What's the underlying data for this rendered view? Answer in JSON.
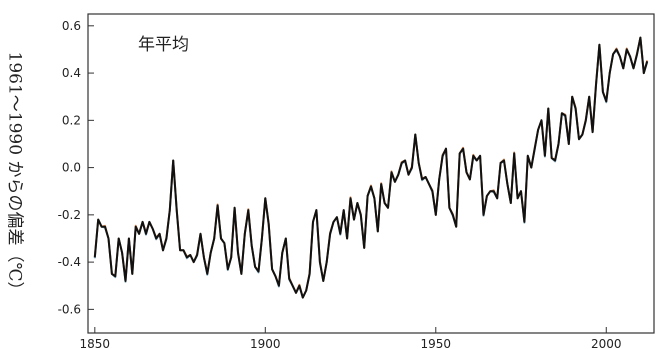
{
  "chart_data": {
    "type": "line",
    "title": "年平均",
    "xlabel": "",
    "ylabel": "1961～1990 からの偏差（℃）",
    "xlim": [
      1848,
      2014
    ],
    "ylim": [
      -0.7,
      0.65
    ],
    "x_ticks": [
      1850,
      1900,
      1950,
      2000
    ],
    "y_ticks": [
      0.6,
      0.4,
      0.2,
      0.0,
      -0.2,
      -0.4,
      -0.6
    ],
    "y_tick_labels": [
      "0.6",
      "0.4",
      "0.2",
      "0.0",
      "-0.2",
      "-0.4",
      "-0.6"
    ],
    "grid": false,
    "colors": [
      "#111111",
      "#d2895a",
      "#8db3c7"
    ],
    "series": [
      {
        "x": [
          1850,
          1851,
          1852,
          1853,
          1854,
          1855,
          1856,
          1857,
          1858,
          1859,
          1860,
          1861,
          1862,
          1863,
          1864,
          1865,
          1866,
          1867,
          1868,
          1869,
          1870,
          1871,
          1872,
          1873,
          1874,
          1875,
          1876,
          1877,
          1878,
          1879,
          1880,
          1881,
          1882,
          1883,
          1884,
          1885,
          1886,
          1887,
          1888,
          1889,
          1890,
          1891,
          1892,
          1893,
          1894,
          1895,
          1896,
          1897,
          1898,
          1899,
          1900,
          1901,
          1902,
          1903,
          1904,
          1905,
          1906,
          1907,
          1908,
          1909,
          1910,
          1911,
          1912,
          1913,
          1914,
          1915,
          1916,
          1917,
          1918,
          1919,
          1920,
          1921,
          1922,
          1923,
          1924,
          1925,
          1926,
          1927,
          1928,
          1929,
          1930,
          1931,
          1932,
          1933,
          1934,
          1935,
          1936,
          1937,
          1938,
          1939,
          1940,
          1941,
          1942,
          1943,
          1944,
          1945,
          1946,
          1947,
          1948,
          1949,
          1950,
          1951,
          1952,
          1953,
          1954,
          1955,
          1956,
          1957,
          1958,
          1959,
          1960,
          1961,
          1962,
          1963,
          1964,
          1965,
          1966,
          1967,
          1968,
          1969,
          1970,
          1971,
          1972,
          1973,
          1974,
          1975,
          1976,
          1977,
          1978,
          1979,
          1980,
          1981,
          1982,
          1983,
          1984,
          1985,
          1986,
          1987,
          1988,
          1989,
          1990,
          1991,
          1992,
          1993,
          1994,
          1995,
          1996,
          1997,
          1998,
          1999,
          2000,
          2001,
          2002,
          2003,
          2004,
          2005,
          2006,
          2007,
          2008,
          2009,
          2010,
          2011,
          2012
        ],
        "values": [
          -0.38,
          -0.22,
          -0.25,
          -0.25,
          -0.3,
          -0.45,
          -0.46,
          -0.3,
          -0.36,
          -0.48,
          -0.3,
          -0.45,
          -0.25,
          -0.28,
          -0.23,
          -0.28,
          -0.23,
          -0.26,
          -0.3,
          -0.28,
          -0.35,
          -0.3,
          -0.18,
          0.03,
          -0.18,
          -0.35,
          -0.35,
          -0.38,
          -0.37,
          -0.4,
          -0.37,
          -0.28,
          -0.38,
          -0.45,
          -0.36,
          -0.3,
          -0.16,
          -0.3,
          -0.32,
          -0.43,
          -0.38,
          -0.17,
          -0.36,
          -0.45,
          -0.28,
          -0.18,
          -0.33,
          -0.42,
          -0.44,
          -0.3,
          -0.13,
          -0.24,
          -0.43,
          -0.46,
          -0.5,
          -0.36,
          -0.3,
          -0.47,
          -0.5,
          -0.53,
          -0.5,
          -0.55,
          -0.52,
          -0.45,
          -0.23,
          -0.18,
          -0.4,
          -0.48,
          -0.4,
          -0.28,
          -0.23,
          -0.21,
          -0.28,
          -0.18,
          -0.3,
          -0.13,
          -0.22,
          -0.15,
          -0.2,
          -0.34,
          -0.12,
          -0.08,
          -0.13,
          -0.27,
          -0.07,
          -0.15,
          -0.17,
          -0.02,
          -0.06,
          -0.03,
          0.02,
          0.03,
          -0.03,
          0.0,
          0.14,
          0.02,
          -0.05,
          -0.04,
          -0.07,
          -0.1,
          -0.2,
          -0.05,
          0.05,
          0.08,
          -0.17,
          -0.2,
          -0.25,
          0.06,
          0.08,
          -0.02,
          -0.05,
          0.05,
          0.03,
          0.05,
          -0.2,
          -0.12,
          -0.1,
          -0.1,
          -0.13,
          0.02,
          0.03,
          -0.07,
          -0.15,
          0.06,
          -0.13,
          -0.1,
          -0.23,
          0.05,
          0.0,
          0.08,
          0.16,
          0.2,
          0.05,
          0.25,
          0.04,
          0.03,
          0.1,
          0.23,
          0.22,
          0.1,
          0.3,
          0.25,
          0.12,
          0.14,
          0.2,
          0.3,
          0.15,
          0.35,
          0.52,
          0.32,
          0.28,
          0.4,
          0.48,
          0.5,
          0.47,
          0.42,
          0.5,
          0.47,
          0.42,
          0.48,
          0.55,
          0.4,
          0.45
        ]
      }
    ]
  }
}
